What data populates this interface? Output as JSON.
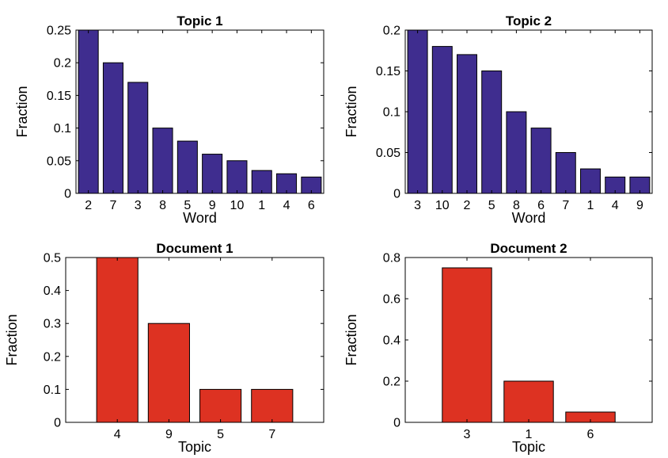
{
  "chart_data": [
    {
      "type": "bar",
      "title": "Topic 1",
      "xlabel": "Word",
      "ylabel": "Fraction",
      "categories": [
        "2",
        "7",
        "3",
        "8",
        "5",
        "9",
        "10",
        "1",
        "4",
        "6"
      ],
      "values": [
        0.25,
        0.2,
        0.17,
        0.1,
        0.08,
        0.06,
        0.05,
        0.035,
        0.03,
        0.025
      ],
      "ylim": [
        0,
        0.25
      ],
      "yticks": [
        0,
        0.05,
        0.1,
        0.15,
        0.2,
        0.25
      ],
      "ytick_labels": [
        "0",
        "0.05",
        "0.1",
        "0.15",
        "0.2",
        "0.25"
      ],
      "bar_color": "#3f2d8f",
      "grid": false
    },
    {
      "type": "bar",
      "title": "Topic 2",
      "xlabel": "Word",
      "ylabel": "Fraction",
      "categories": [
        "3",
        "10",
        "2",
        "5",
        "8",
        "6",
        "7",
        "1",
        "4",
        "9"
      ],
      "values": [
        0.2,
        0.18,
        0.17,
        0.15,
        0.1,
        0.08,
        0.05,
        0.03,
        0.02,
        0.02
      ],
      "ylim": [
        0,
        0.2
      ],
      "yticks": [
        0,
        0.05,
        0.1,
        0.15,
        0.2
      ],
      "ytick_labels": [
        "0",
        "0.05",
        "0.1",
        "0.15",
        "0.2"
      ],
      "bar_color": "#3f2d8f",
      "grid": false
    },
    {
      "type": "bar",
      "title": "Document 1",
      "xlabel": "Topic",
      "ylabel": "Fraction",
      "categories": [
        "4",
        "9",
        "5",
        "7"
      ],
      "values": [
        0.5,
        0.3,
        0.1,
        0.1
      ],
      "ylim": [
        0,
        0.5
      ],
      "yticks": [
        0,
        0.1,
        0.2,
        0.3,
        0.4,
        0.5
      ],
      "ytick_labels": [
        "0",
        "0.1",
        "0.2",
        "0.3",
        "0.4",
        "0.5"
      ],
      "bar_color": "#dd3222",
      "grid": false
    },
    {
      "type": "bar",
      "title": "Document 2",
      "xlabel": "Topic",
      "ylabel": "Fraction",
      "categories": [
        "3",
        "1",
        "6"
      ],
      "values": [
        0.75,
        0.2,
        0.05
      ],
      "ylim": [
        0,
        0.8
      ],
      "yticks": [
        0,
        0.2,
        0.4,
        0.6,
        0.8
      ],
      "ytick_labels": [
        "0",
        "0.2",
        "0.4",
        "0.6",
        "0.8"
      ],
      "bar_color": "#dd3222",
      "grid": false
    }
  ]
}
